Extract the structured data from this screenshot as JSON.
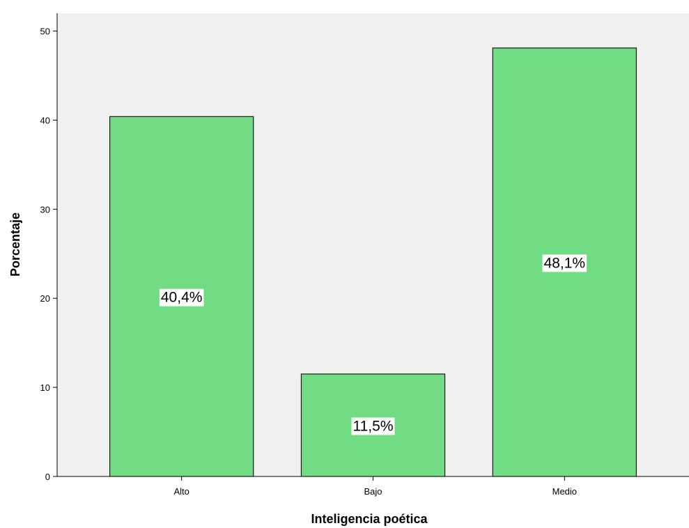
{
  "chart_data": {
    "type": "bar",
    "categories": [
      "Alto",
      "Bajo",
      "Medio"
    ],
    "values": [
      40.4,
      11.5,
      48.1
    ],
    "data_labels": [
      "40,4%",
      "11,5%",
      "48,1%"
    ],
    "xlabel": "Inteligencia poética",
    "ylabel": "Porcentaje",
    "ylim": [
      0,
      52
    ],
    "yticks": [
      0,
      10,
      20,
      30,
      40,
      50
    ],
    "grid": false,
    "colors": {
      "plot_background": "#f0f0f0",
      "bar_fill": "#72dc84",
      "bar_stroke": "#1a1a1a",
      "label_background": "#ffffff"
    }
  }
}
